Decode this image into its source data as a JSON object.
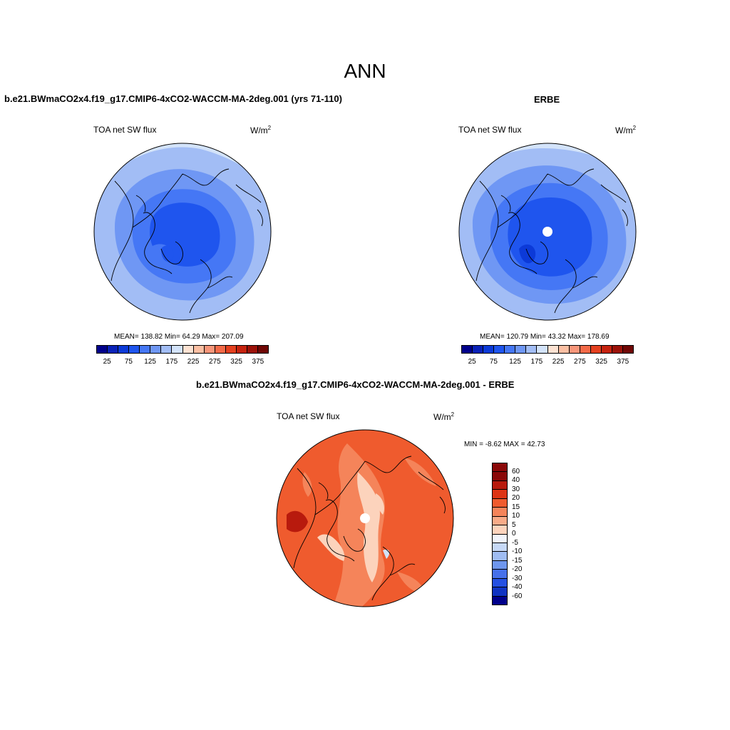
{
  "main_title": "ANN",
  "panels": [
    {
      "title": "b.e21.BWmaCO2x4.f19_g17.CMIP6-4xCO2-WACCM-MA-2deg.001 (yrs 71-110)",
      "left_label": "TOA net SW flux",
      "units": "W/m",
      "units_sup": "2",
      "stats": "MEAN= 138.82  Min=  64.29  Max= 207.09"
    },
    {
      "title": "ERBE",
      "left_label": "TOA net SW flux",
      "units": "W/m",
      "units_sup": "2",
      "stats": "MEAN= 120.79  Min=  43.32  Max= 178.69"
    },
    {
      "title": "b.e21.BWmaCO2x4.f19_g17.CMIP6-4xCO2-WACCM-MA-2deg.001 - ERBE",
      "left_label": "TOA net SW flux",
      "units": "W/m",
      "units_sup": "2",
      "stats": "MIN =  -8.62 MAX =  42.73"
    }
  ],
  "colorbar_abs": {
    "colors": [
      "#00008b",
      "#0a22b8",
      "#0c3ad8",
      "#1f55ee",
      "#4577f5",
      "#6f97f4",
      "#a2bdf5",
      "#d3e3fa",
      "#fde2d2",
      "#fbbfa3",
      "#f8967a",
      "#f36a48",
      "#e4401f",
      "#c6230f",
      "#9c1209",
      "#700705"
    ],
    "ticks": [
      "25",
      "75",
      "125",
      "175",
      "225",
      "275",
      "325",
      "375"
    ]
  },
  "colorbar_diff": {
    "colors": [
      "#8a0808",
      "#b81a0d",
      "#dd3414",
      "#ef5b2e",
      "#f5845a",
      "#f8ab88",
      "#fcd3bc",
      "#f1f4fb",
      "#c6d8f6",
      "#9fbcf2",
      "#6e96ee",
      "#4670ea",
      "#2450e2",
      "#0f33c2",
      "#00008b"
    ],
    "ticks": [
      "60",
      "40",
      "30",
      "20",
      "15",
      "10",
      "5",
      "0",
      "-5",
      "-10",
      "-15",
      "-20",
      "-30",
      "-40",
      "-60"
    ]
  },
  "map_colors": {
    "deep_blue": "#1f55ee",
    "mid_blue": "#4577f5",
    "light_blue": "#6f97f4",
    "pale_blue": "#a2bdf5",
    "paler_blue": "#d3e3fa",
    "red_base": "#ef5b2e",
    "red_light": "#f5845a",
    "red_pale": "#fcd3bc",
    "red_dark": "#b81a0d"
  }
}
